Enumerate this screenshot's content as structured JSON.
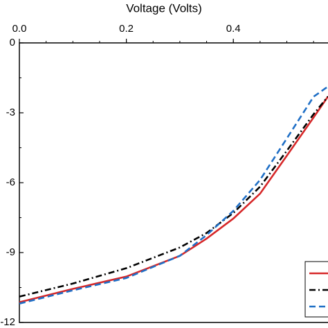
{
  "chart_data": {
    "type": "line",
    "x_label": "Voltage (Volts)",
    "x": [
      0,
      0.1,
      0.2,
      0.3,
      0.35,
      0.4,
      0.45,
      0.5,
      0.55,
      0.577
    ],
    "series": [
      {
        "color": "#d62728",
        "dash": "solid",
        "values": [
          -11.13,
          -10.56,
          -10.03,
          -9.14,
          -8.4,
          -7.54,
          -6.47,
          -4.84,
          -3.2,
          -2.3
        ]
      },
      {
        "color": "#000000",
        "dash": "dashdot",
        "values": [
          -10.89,
          -10.33,
          -9.67,
          -8.78,
          -8.16,
          -7.3,
          -6.17,
          -4.63,
          -3.06,
          -2.3
        ]
      },
      {
        "color": "#1f6fc6",
        "dash": "dashed",
        "values": [
          -11.19,
          -10.62,
          -10.09,
          -9.14,
          -8.25,
          -7.21,
          -5.88,
          -4.1,
          -2.31,
          -1.87
        ]
      }
    ],
    "xlim": [
      0,
      0.6
    ],
    "xticks": [
      {
        "value": 0,
        "label": "0.0"
      },
      0.2,
      0.4
    ],
    "ylim": [
      -12,
      0
    ],
    "yticks": [
      0,
      -3,
      -6,
      -9,
      -12
    ],
    "x_axis_position": "top",
    "legend": "lower right",
    "grid": false
  }
}
